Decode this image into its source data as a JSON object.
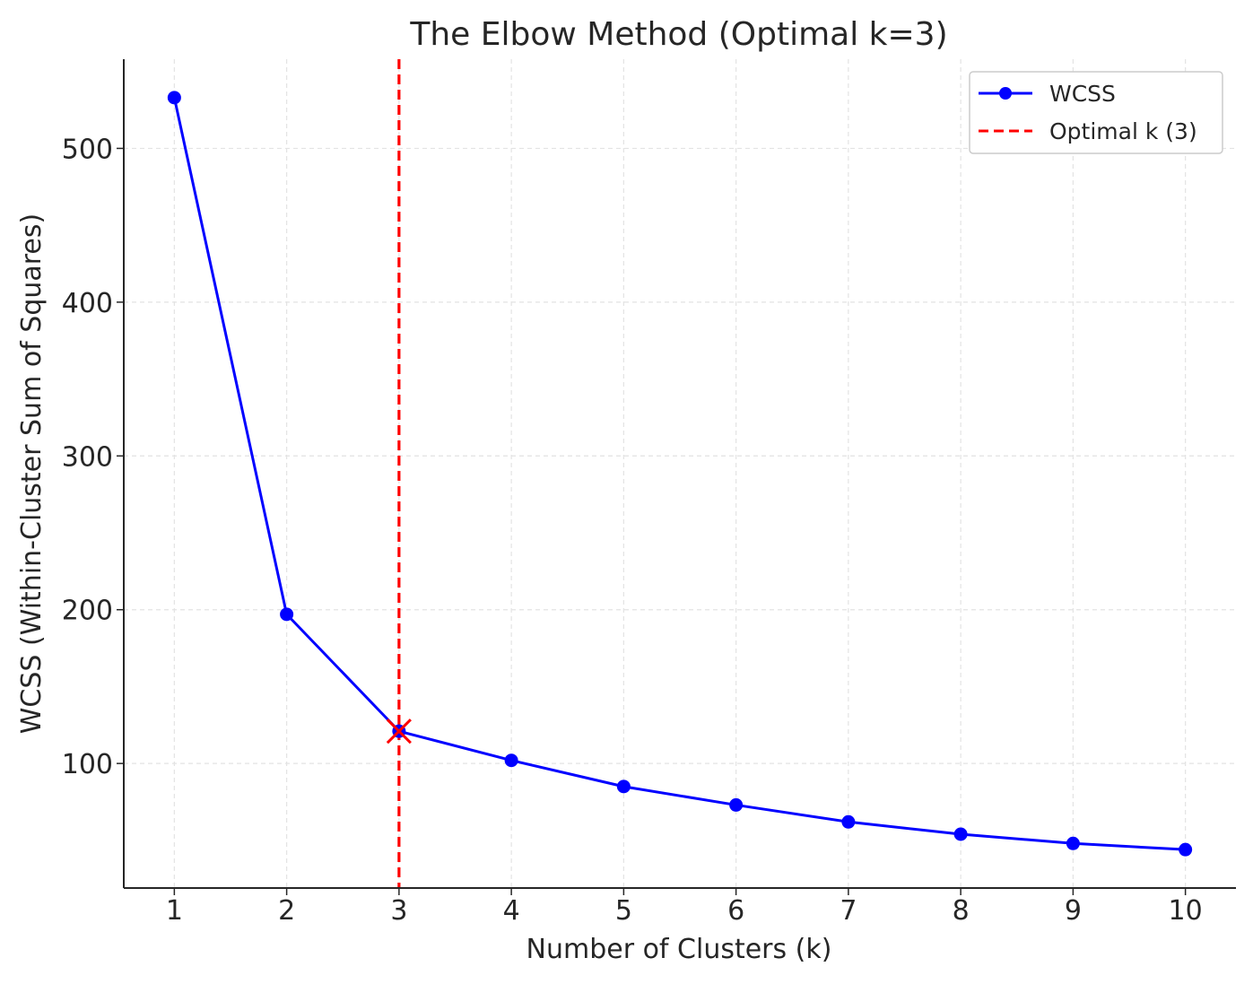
{
  "chart_data": {
    "type": "line",
    "title": "The Elbow Method (Optimal k=3)",
    "xlabel": "Number of Clusters (k)",
    "ylabel": "WCSS (Within-Cluster Sum of Squares)",
    "xlim": [
      0.55,
      10.45
    ],
    "ylim": [
      19,
      558
    ],
    "x_ticks": [
      1,
      2,
      3,
      4,
      5,
      6,
      7,
      8,
      9,
      10
    ],
    "y_ticks": [
      100,
      200,
      300,
      400,
      500
    ],
    "grid": true,
    "legend_position": "top-right",
    "series": [
      {
        "name": "WCSS",
        "color": "#0000ff",
        "marker": "circle",
        "x": [
          1,
          2,
          3,
          4,
          5,
          6,
          7,
          8,
          9,
          10
        ],
        "values": [
          533,
          197,
          121,
          102,
          85,
          73,
          62,
          54,
          48,
          44
        ]
      }
    ],
    "reference_line": {
      "name": "Optimal k (3)",
      "orientation": "vertical",
      "x": 3,
      "color": "#ff0000",
      "style": "dashed"
    },
    "highlight_point": {
      "x": 3,
      "y": 121,
      "marker": "x",
      "color": "#ff0000"
    }
  }
}
